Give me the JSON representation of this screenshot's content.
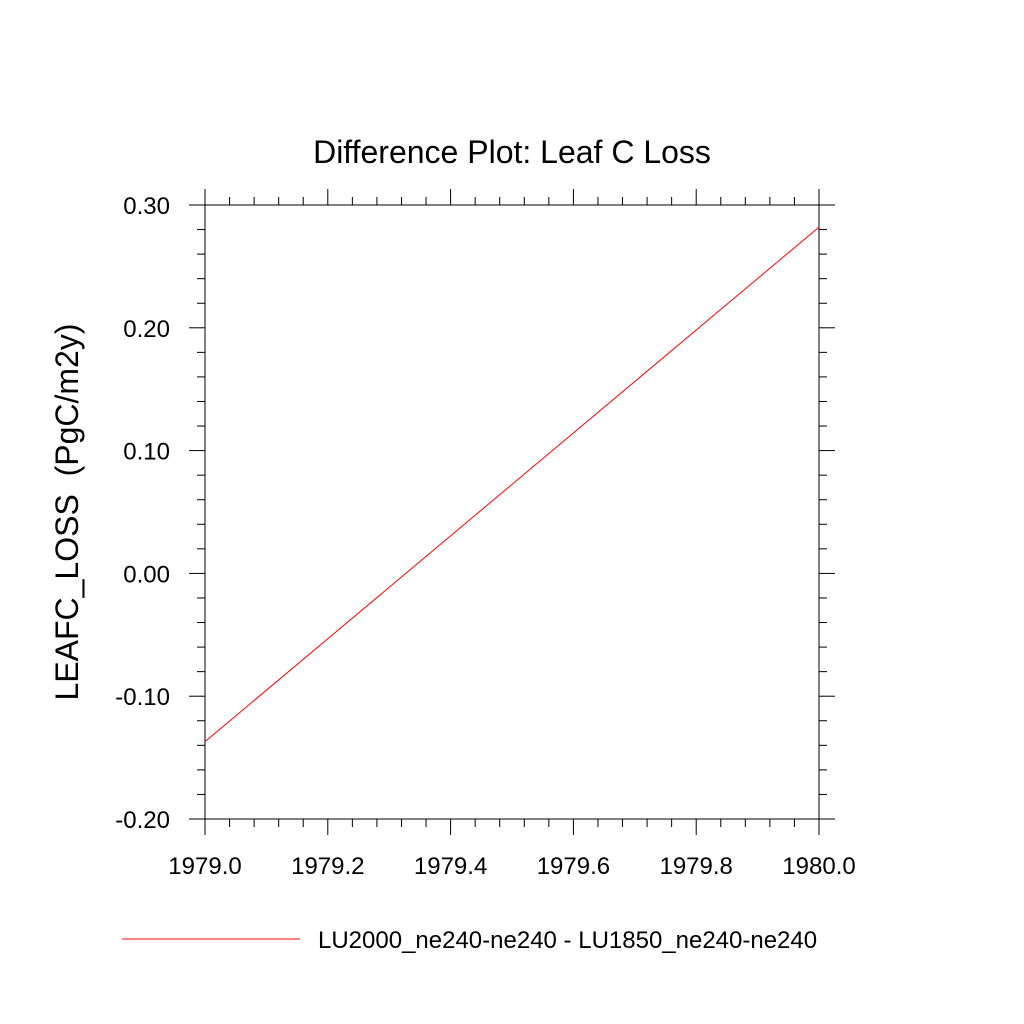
{
  "chart_data": {
    "type": "line",
    "title": "Difference Plot: Leaf C Loss",
    "xlabel": "",
    "ylabel": "LEAFC_LOSS  (PgC/m2y)",
    "xlim": [
      1979.0,
      1980.0
    ],
    "ylim": [
      -0.2,
      0.3
    ],
    "x_ticks": [
      1979.0,
      1979.2,
      1979.4,
      1979.6,
      1979.8,
      1980.0
    ],
    "x_tick_labels": [
      "1979.0",
      "1979.2",
      "1979.4",
      "1979.6",
      "1979.8",
      "1980.0"
    ],
    "y_ticks": [
      -0.2,
      -0.1,
      0.0,
      0.1,
      0.2,
      0.3
    ],
    "y_tick_labels": [
      "-0.20",
      "-0.10",
      "0.00",
      "0.10",
      "0.20",
      "0.30"
    ],
    "grid": false,
    "legend_position": "bottom",
    "series": [
      {
        "name": "LU2000_ne240-ne240 - LU1850_ne240-ne240",
        "color": "#ff0000",
        "x": [
          1979.0,
          1980.0
        ],
        "y": [
          -0.137,
          0.282
        ]
      }
    ]
  }
}
